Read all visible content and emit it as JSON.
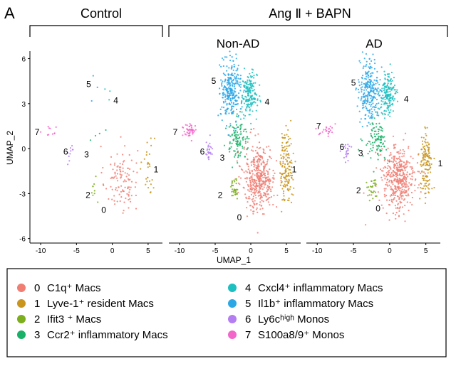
{
  "panel_letter": "A",
  "groups": {
    "control": "Control",
    "treated": "Ang Ⅱ + BAPN"
  },
  "chart_data": {
    "type": "scatter",
    "xlabel": "UMAP_1",
    "ylabel": "UMAP_2",
    "x_ticks": [
      -10,
      -5,
      0,
      5
    ],
    "y_ticks": [
      -6,
      -3,
      0,
      3,
      6
    ],
    "xlim": [
      -11.5,
      7
    ],
    "ylim": [
      -6.3,
      6.5
    ],
    "panels": [
      {
        "title": "",
        "cluster_labels": [
          {
            "id": "0",
            "x": -1.2,
            "y": -4.1
          },
          {
            "id": "1",
            "x": 6.1,
            "y": -1.4
          },
          {
            "id": "2",
            "x": -3.4,
            "y": -3.1
          },
          {
            "id": "3",
            "x": -3.6,
            "y": -0.4
          },
          {
            "id": "4",
            "x": 0.5,
            "y": 3.2
          },
          {
            "id": "5",
            "x": -3.3,
            "y": 4.3
          },
          {
            "id": "6",
            "x": -6.5,
            "y": -0.2
          },
          {
            "id": "7",
            "x": -10.5,
            "y": 1.1
          }
        ]
      },
      {
        "title": "Non-AD",
        "cluster_labels": [
          {
            "id": "0",
            "x": -1.6,
            "y": -4.6
          },
          {
            "id": "1",
            "x": 6.1,
            "y": -1.4
          },
          {
            "id": "2",
            "x": -4.3,
            "y": -3.1
          },
          {
            "id": "3",
            "x": -4.0,
            "y": -0.6
          },
          {
            "id": "4",
            "x": 2.3,
            "y": 3.1
          },
          {
            "id": "5",
            "x": -5.2,
            "y": 4.5
          },
          {
            "id": "6",
            "x": -6.8,
            "y": -0.2
          },
          {
            "id": "7",
            "x": -10.6,
            "y": 1.1
          }
        ]
      },
      {
        "title": "AD",
        "cluster_labels": [
          {
            "id": "0",
            "x": -1.6,
            "y": -4.0
          },
          {
            "id": "1",
            "x": 7.0,
            "y": -1.0
          },
          {
            "id": "2",
            "x": -4.3,
            "y": -2.8
          },
          {
            "id": "3",
            "x": -4.0,
            "y": -0.3
          },
          {
            "id": "4",
            "x": 2.3,
            "y": 3.3
          },
          {
            "id": "5",
            "x": -5.0,
            "y": 4.4
          },
          {
            "id": "6",
            "x": -6.6,
            "y": 0.1
          },
          {
            "id": "7",
            "x": -9.8,
            "y": 1.5
          }
        ]
      }
    ],
    "clusters": [
      {
        "id": "0",
        "name": "C1q⁺ Macs",
        "color": "#F07E73",
        "center": [
          1.2,
          -2.0
        ],
        "spread": [
          2.1,
          2.0
        ]
      },
      {
        "id": "1",
        "name": "Lyve-1⁺ resident Macs",
        "color": "#C9951C",
        "center": [
          5.0,
          -1.2
        ],
        "spread": [
          0.8,
          2.2
        ]
      },
      {
        "id": "2",
        "name": "Ifit3 ⁺ Macs",
        "color": "#7CAE1E",
        "center": [
          -2.3,
          -2.7
        ],
        "spread": [
          0.6,
          0.6
        ]
      },
      {
        "id": "3",
        "name": "Ccr2⁺ inflammatory Macs",
        "color": "#19B067",
        "center": [
          -1.8,
          0.6
        ],
        "spread": [
          1.5,
          1.2
        ]
      },
      {
        "id": "4",
        "name": "Cxcl4⁺ inflammatory Macs",
        "color": "#1DBFC0",
        "center": [
          -0.2,
          3.6
        ],
        "spread": [
          1.0,
          1.3
        ]
      },
      {
        "id": "5",
        "name": "Il1b⁺ inflammatory Macs",
        "color": "#2CA7E6",
        "center": [
          -2.8,
          3.9
        ],
        "spread": [
          1.3,
          1.8
        ]
      },
      {
        "id": "6",
        "name": "Ly6cʰⁱᵍʰ Monos",
        "color": "#B47EF2",
        "center": [
          -5.9,
          -0.2
        ],
        "spread": [
          0.5,
          0.6
        ]
      },
      {
        "id": "7",
        "name": "S100a8/9⁺ Monos",
        "color": "#F366C9",
        "center": [
          -8.6,
          1.2
        ],
        "spread": [
          0.9,
          0.4
        ]
      }
    ],
    "density": [
      [
        110,
        28,
        10,
        4,
        3,
        3,
        10,
        10
      ],
      [
        420,
        150,
        35,
        110,
        180,
        280,
        25,
        45
      ],
      [
        420,
        140,
        30,
        100,
        170,
        260,
        22,
        25
      ]
    ]
  },
  "legend": [
    {
      "id": "0",
      "text": "C1q⁺ Macs"
    },
    {
      "id": "1",
      "text": "Lyve-1⁺ resident Macs"
    },
    {
      "id": "2",
      "text": "Ifit3 ⁺ Macs"
    },
    {
      "id": "3",
      "text": "Ccr2⁺ inflammatory Macs"
    },
    {
      "id": "4",
      "text": "Cxcl4⁺ inflammatory Macs"
    },
    {
      "id": "5",
      "text": "Il1b⁺ inflammatory Macs"
    },
    {
      "id": "6",
      "text": "Ly6cʰⁱᵍʰ Monos"
    },
    {
      "id": "7",
      "text": "S100a8/9⁺ Monos"
    }
  ]
}
